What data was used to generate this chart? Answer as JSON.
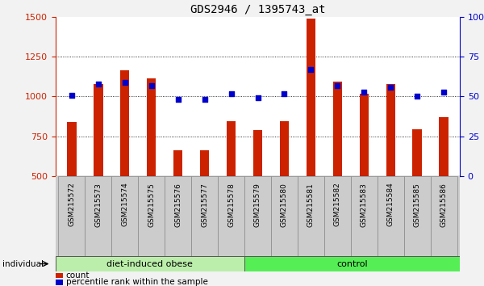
{
  "title": "GDS2946 / 1395743_at",
  "samples": [
    "GSM215572",
    "GSM215573",
    "GSM215574",
    "GSM215575",
    "GSM215576",
    "GSM215577",
    "GSM215578",
    "GSM215579",
    "GSM215580",
    "GSM215581",
    "GSM215582",
    "GSM215583",
    "GSM215584",
    "GSM215585",
    "GSM215586"
  ],
  "count_values": [
    840,
    1080,
    1165,
    1115,
    660,
    660,
    845,
    790,
    845,
    1490,
    1095,
    1020,
    1080,
    795,
    870
  ],
  "percentile_values": [
    51,
    58,
    59,
    57,
    48,
    48,
    52,
    49,
    52,
    67,
    57,
    53,
    56,
    50,
    53
  ],
  "groups": [
    {
      "label": "diet-induced obese",
      "start": 0,
      "end": 7
    },
    {
      "label": "control",
      "start": 7,
      "end": 15
    }
  ],
  "group_colors": [
    "#BBEEAA",
    "#55EE55"
  ],
  "ylim_left": [
    500,
    1500
  ],
  "ylim_right": [
    0,
    100
  ],
  "yticks_left": [
    500,
    750,
    1000,
    1250,
    1500
  ],
  "yticks_right": [
    0,
    25,
    50,
    75,
    100
  ],
  "bar_color": "#CC2200",
  "dot_color": "#0000CC",
  "bg_plot": "#FFFFFF",
  "xtick_bg": "#CCCCCC",
  "individual_label": "individual",
  "legend_count": "count",
  "legend_percentile": "percentile rank within the sample",
  "title_fontsize": 10,
  "axis_fontsize": 8,
  "xtick_fontsize": 6.5,
  "bar_width": 0.35,
  "fig_bg": "#F2F2F2"
}
